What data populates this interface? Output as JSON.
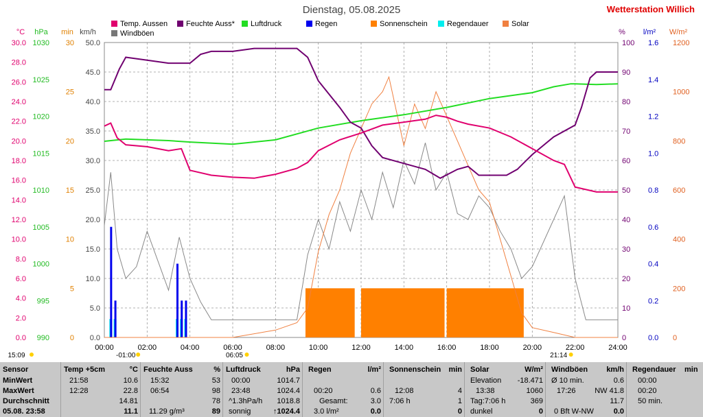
{
  "header": {
    "title": "Dienstag, 05.08.2025",
    "brand": "Wetterstation Willich"
  },
  "axes": {
    "left_units": [
      "°C",
      "hPa",
      "min",
      "km/h"
    ],
    "right_units": [
      "%",
      "l/m²",
      "W/m²"
    ],
    "temp_ticks": [
      "30.0",
      "28.0",
      "26.0",
      "24.0",
      "22.0",
      "20.0",
      "18.0",
      "16.0",
      "14.0",
      "12.0",
      "10.0",
      "8.0",
      "6.0",
      "4.0",
      "2.0",
      "0.0"
    ],
    "hpa_ticks": [
      "1030",
      "1025",
      "1020",
      "1015",
      "1010",
      "1005",
      "1000",
      "995",
      "990"
    ],
    "min_ticks": [
      "30",
      "25",
      "20",
      "15",
      "10",
      "5",
      "0"
    ],
    "kmh_ticks": [
      "50.0",
      "45.0",
      "40.0",
      "35.0",
      "30.0",
      "25.0",
      "20.0",
      "15.0",
      "10.0",
      "5.0",
      "0.0"
    ],
    "pct_ticks": [
      "100",
      "90",
      "80",
      "70",
      "60",
      "50",
      "40",
      "30",
      "20",
      "10",
      "0"
    ],
    "rain_ticks": [
      "1.6",
      "1.4",
      "1.2",
      "1.0",
      "0.8",
      "0.6",
      "0.4",
      "0.2",
      "0.0"
    ],
    "solar_ticks": [
      "1200",
      "1000",
      "800",
      "600",
      "400",
      "200",
      "0"
    ],
    "x_ticks": [
      "00:00",
      "02:00",
      "04:00",
      "06:00",
      "08:00",
      "10:00",
      "12:00",
      "14:00",
      "16:00",
      "18:00",
      "20:00",
      "22:00",
      "24:00"
    ],
    "sun_markers": [
      {
        "label": "15:09",
        "hour": 0.0
      },
      {
        "label": "-01:00",
        "hour": 1.0
      },
      {
        "label": "06:05",
        "hour": 6.08
      },
      {
        "label": "21:14",
        "hour": 21.23
      }
    ]
  },
  "legend": [
    {
      "label": "Temp. Aussen",
      "color": "#e0006e"
    },
    {
      "label": "Feuchte Auss*",
      "color": "#700070"
    },
    {
      "label": "Luftdruck",
      "color": "#22dd22"
    },
    {
      "label": "Regen",
      "color": "#0000ee"
    },
    {
      "label": "Sonnenschein",
      "color": "#ff8000"
    },
    {
      "label": "Regendauer",
      "color": "#00eeee"
    },
    {
      "label": "Solar",
      "color": "#f08040"
    },
    {
      "label": "Windböen",
      "color": "#777777"
    }
  ],
  "chart_data": {
    "type": "line",
    "x_range": [
      0,
      24
    ],
    "temp_range": [
      0,
      30
    ],
    "hpa_range": [
      990,
      1030
    ],
    "pct_range": [
      0,
      100
    ],
    "solar_range": [
      0,
      1200
    ],
    "kmh_range": [
      0,
      50
    ],
    "rain_range": [
      0,
      1.6
    ],
    "min_range": [
      0,
      30
    ],
    "temperature": [
      [
        0,
        21.5
      ],
      [
        0.3,
        21.8
      ],
      [
        0.6,
        20.3
      ],
      [
        1,
        19.6
      ],
      [
        2,
        19.4
      ],
      [
        3,
        19.0
      ],
      [
        3.6,
        19.2
      ],
      [
        4,
        17.0
      ],
      [
        5,
        16.5
      ],
      [
        6,
        16.3
      ],
      [
        7,
        16.2
      ],
      [
        8,
        16.6
      ],
      [
        9,
        17.2
      ],
      [
        9.5,
        17.8
      ],
      [
        10,
        19.0
      ],
      [
        11,
        20.1
      ],
      [
        12,
        20.8
      ],
      [
        13,
        21.6
      ],
      [
        14,
        21.9
      ],
      [
        15,
        22.2
      ],
      [
        15.5,
        22.6
      ],
      [
        16,
        22.4
      ],
      [
        16.5,
        22.0
      ],
      [
        17,
        21.7
      ],
      [
        18,
        21.3
      ],
      [
        19,
        20.4
      ],
      [
        20,
        19.2
      ],
      [
        21,
        18.0
      ],
      [
        21.5,
        17.6
      ],
      [
        22,
        15.3
      ],
      [
        23,
        14.8
      ],
      [
        24,
        14.8
      ]
    ],
    "humidity": [
      [
        0,
        84
      ],
      [
        0.3,
        84
      ],
      [
        0.7,
        91
      ],
      [
        1,
        95
      ],
      [
        2,
        94
      ],
      [
        3,
        93
      ],
      [
        4,
        93
      ],
      [
        4.5,
        96
      ],
      [
        5,
        97
      ],
      [
        6,
        97
      ],
      [
        7,
        98
      ],
      [
        8,
        98
      ],
      [
        9,
        98
      ],
      [
        9.5,
        95
      ],
      [
        10,
        87
      ],
      [
        11,
        78
      ],
      [
        11.5,
        73
      ],
      [
        12,
        71
      ],
      [
        12.5,
        65
      ],
      [
        13,
        61
      ],
      [
        14,
        59
      ],
      [
        15,
        57
      ],
      [
        15.7,
        54
      ],
      [
        16.5,
        57
      ],
      [
        17,
        58
      ],
      [
        17.5,
        55
      ],
      [
        18,
        55
      ],
      [
        18.8,
        55
      ],
      [
        19.3,
        57
      ],
      [
        20,
        62
      ],
      [
        21,
        68
      ],
      [
        22,
        72
      ],
      [
        22.3,
        78
      ],
      [
        22.7,
        88
      ],
      [
        23,
        90
      ],
      [
        23.6,
        90
      ],
      [
        24,
        90
      ]
    ],
    "pressure": [
      [
        0,
        1016.6
      ],
      [
        1,
        1016.9
      ],
      [
        3,
        1016.7
      ],
      [
        4,
        1016.5
      ],
      [
        6,
        1016.2
      ],
      [
        8,
        1016.8
      ],
      [
        10,
        1018.4
      ],
      [
        12,
        1019.4
      ],
      [
        14,
        1020.2
      ],
      [
        16,
        1021.2
      ],
      [
        18,
        1022.4
      ],
      [
        20,
        1023.2
      ],
      [
        21,
        1024.0
      ],
      [
        21.8,
        1024.4
      ],
      [
        22,
        1024.4
      ],
      [
        23,
        1024.3
      ],
      [
        24,
        1024.4
      ]
    ],
    "solar": [
      [
        0,
        0
      ],
      [
        6,
        0
      ],
      [
        8,
        30
      ],
      [
        9,
        60
      ],
      [
        9.5,
        120
      ],
      [
        10,
        350
      ],
      [
        10.5,
        500
      ],
      [
        11,
        600
      ],
      [
        11.5,
        750
      ],
      [
        12,
        850
      ],
      [
        12.5,
        950
      ],
      [
        13,
        1000
      ],
      [
        13.3,
        1060
      ],
      [
        13.7,
        900
      ],
      [
        14,
        780
      ],
      [
        14.5,
        950
      ],
      [
        15,
        850
      ],
      [
        15.5,
        1000
      ],
      [
        16,
        900
      ],
      [
        16.5,
        800
      ],
      [
        17,
        700
      ],
      [
        17.5,
        600
      ],
      [
        18,
        550
      ],
      [
        18.5,
        400
      ],
      [
        19,
        250
      ],
      [
        19.5,
        100
      ],
      [
        20,
        40
      ],
      [
        21,
        20
      ],
      [
        22,
        0
      ],
      [
        24,
        0
      ]
    ],
    "wind_gust": [
      [
        0,
        19
      ],
      [
        0.3,
        28
      ],
      [
        0.6,
        15
      ],
      [
        1,
        10
      ],
      [
        1.5,
        12
      ],
      [
        2,
        18
      ],
      [
        2.5,
        13
      ],
      [
        3,
        8
      ],
      [
        3.5,
        17
      ],
      [
        4,
        10
      ],
      [
        4.5,
        6
      ],
      [
        5,
        3
      ],
      [
        6,
        3
      ],
      [
        7,
        3
      ],
      [
        8,
        3
      ],
      [
        9,
        3
      ],
      [
        9.5,
        14
      ],
      [
        10,
        20
      ],
      [
        10.5,
        15
      ],
      [
        11,
        23
      ],
      [
        11.5,
        18
      ],
      [
        12,
        25
      ],
      [
        12.5,
        20
      ],
      [
        13,
        28
      ],
      [
        13.5,
        22
      ],
      [
        14,
        30
      ],
      [
        14.5,
        26
      ],
      [
        15,
        33
      ],
      [
        15.5,
        25
      ],
      [
        16,
        28
      ],
      [
        16.5,
        21
      ],
      [
        17,
        20
      ],
      [
        17.5,
        24
      ],
      [
        18,
        22
      ],
      [
        18.5,
        18
      ],
      [
        19,
        15
      ],
      [
        19.5,
        10
      ],
      [
        20,
        12
      ],
      [
        21,
        20
      ],
      [
        21.5,
        24
      ],
      [
        22,
        10
      ],
      [
        22.5,
        3
      ],
      [
        23,
        3
      ],
      [
        24,
        3
      ]
    ],
    "rain_hours": [
      0.3,
      0.5,
      3.4,
      3.6,
      3.8
    ],
    "sunshine_intervals": [
      [
        9.4,
        11.7
      ],
      [
        12.0,
        15.9
      ],
      [
        16.0,
        19.6
      ]
    ]
  },
  "table": {
    "sensor": {
      "title": "Sensor",
      "rows": [
        "MinWert",
        "MaxWert",
        "Durchschnitt",
        "05.08. 23:58"
      ]
    },
    "temp": {
      "title": "Temp +5cm",
      "unit": "°C",
      "min_time": "21:58",
      "min": "10.6",
      "max_time": "12:28",
      "max": "22.8",
      "avg": "14.81",
      "cur": "11.1"
    },
    "hum": {
      "title": "Feuchte Auss",
      "unit": "%",
      "min_time": "15:32",
      "min": "53",
      "max_time": "06:54",
      "max": "98",
      "avg": "78",
      "cur_abs": "11.29 g/m³",
      "cur": "89"
    },
    "press": {
      "title": "Luftdruck",
      "unit": "hPa",
      "min_time": "00:00",
      "min": "1014.7",
      "max_time": "23:48",
      "max": "1024.4",
      "trend": "^1.3hPa/h",
      "avg": "1018.8",
      "state": "sonnig",
      "cur": "↑1024.4"
    },
    "rain": {
      "title": "Regen",
      "unit": "l/m²",
      "time": "00:20",
      "val": "0.6",
      "total_label": "Gesamt:",
      "total": "3.0",
      "cur_label": "3.0 l/m²",
      "cur": "0.0"
    },
    "sun": {
      "title": "Sonnenschein",
      "unit": "min",
      "time": "12:08",
      "val": "4",
      "total_label": "7:06 h",
      "total": "1",
      "cur": "0"
    },
    "solar": {
      "title": "Solar",
      "unit": "W/m²",
      "elev_label": "Elevation",
      "elev": "-18.471",
      "time": "13:38",
      "max": "1060",
      "tag_label": "Tag:7:06 h",
      "tag": "369",
      "cur_label": "dunkel",
      "cur": "0"
    },
    "wind": {
      "title": "Windböen",
      "unit": "km/h",
      "avg_label": "Ø 10 min.",
      "avg": "0.6",
      "time": "17:26",
      "max": "NW 41.8",
      "mean": "11.7",
      "cur_label": "0 Bft W-NW",
      "cur": "0.0"
    },
    "raindur": {
      "title": "Regendauer",
      "unit": "min",
      "t1": "00:00",
      "t2": "00:20",
      "total": "50 min."
    }
  }
}
